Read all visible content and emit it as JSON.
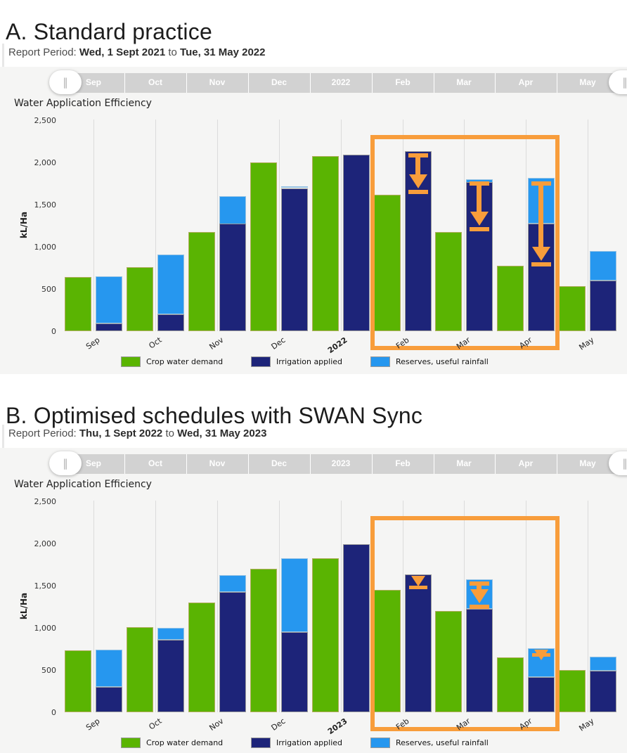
{
  "colors": {
    "green": "#5ab402",
    "green_border": "#b2ad60",
    "navy": "#1d2479",
    "navy_border": "#9b9b9b",
    "blue": "#2697ef",
    "blue_border": "#98c4e4",
    "orange": "#f89d3b",
    "slider_track": "#d2d2d2",
    "panel_bg": "#f5f5f4",
    "gridline": "#dbdbdb"
  },
  "slider": {
    "handle_glyph": "‖"
  },
  "sections": [
    {
      "heading": "A. Standard practice",
      "report_period": {
        "label": "Report Period:",
        "start": "Wed, 1 Sept 2021",
        "to": "to",
        "end": "Tue, 31 May 2022"
      }
    },
    {
      "heading": "B. Optimised schedules with SWAN Sync",
      "report_period": {
        "label": "Report Period:",
        "start": "Thu, 1 Sept 2022",
        "to": "to",
        "end": "Wed, 31 May 2023"
      }
    }
  ],
  "chart_data": [
    {
      "type": "bar",
      "title": "Water Application Efficiency",
      "ylabel": "kL/Ha",
      "ylim": [
        0,
        2500
      ],
      "yticks": [
        0,
        500,
        1000,
        1500,
        2000,
        2500
      ],
      "grid": "vertical-only",
      "legend_position": "bottom",
      "slider_labels": [
        "Sep",
        "Oct",
        "Nov",
        "Dec",
        "2022",
        "Feb",
        "Mar",
        "Apr",
        "May"
      ],
      "categories": [
        "Sep",
        "Oct",
        "Nov",
        "Dec",
        "2022",
        "Feb",
        "Mar",
        "Apr",
        "May"
      ],
      "series": [
        {
          "name": "Crop water demand",
          "color": "#5ab402",
          "values": [
            640,
            760,
            1170,
            2000,
            2070,
            1610,
            1170,
            770,
            530
          ]
        },
        {
          "name": "Irrigation applied",
          "color": "#1d2479",
          "values": [
            90,
            200,
            1270,
            1690,
            2090,
            2130,
            1760,
            1270,
            600
          ]
        },
        {
          "name": "Reserves, useful rainfall",
          "color": "#2697ef",
          "stacked_on": "Irrigation applied",
          "values": [
            560,
            710,
            330,
            20,
            0,
            0,
            40,
            540,
            350
          ]
        }
      ],
      "highlight": {
        "months": [
          "Feb",
          "Mar",
          "Apr"
        ],
        "color": "#f89d3b",
        "top_value": 2320
      },
      "arrows": [
        {
          "month": "Feb",
          "from": 2130,
          "to": 1640,
          "style": "full"
        },
        {
          "month": "Mar",
          "from": 1800,
          "to": 1200,
          "style": "full"
        },
        {
          "month": "Apr",
          "from": 1800,
          "to": 780,
          "style": "full"
        }
      ]
    },
    {
      "type": "bar",
      "title": "Water Application Efficiency",
      "ylabel": "kL/Ha",
      "ylim": [
        0,
        2500
      ],
      "yticks": [
        0,
        500,
        1000,
        1500,
        2000,
        2500
      ],
      "grid": "vertical-only",
      "legend_position": "bottom",
      "slider_labels": [
        "Sep",
        "Oct",
        "Nov",
        "Dec",
        "2023",
        "Feb",
        "Mar",
        "Apr",
        "May"
      ],
      "categories": [
        "Sep",
        "Oct",
        "Nov",
        "Dec",
        "2023",
        "Feb",
        "Mar",
        "Apr",
        "May"
      ],
      "series": [
        {
          "name": "Crop water demand",
          "color": "#5ab402",
          "values": [
            730,
            1010,
            1300,
            1700,
            1820,
            1450,
            1200,
            650,
            500
          ]
        },
        {
          "name": "Irrigation applied",
          "color": "#1d2479",
          "values": [
            300,
            860,
            1420,
            950,
            1990,
            1630,
            1220,
            420,
            490
          ]
        },
        {
          "name": "Reserves, useful rainfall",
          "color": "#2697ef",
          "stacked_on": "Irrigation applied",
          "values": [
            440,
            140,
            200,
            870,
            0,
            0,
            350,
            340,
            170
          ]
        }
      ],
      "highlight": {
        "months": [
          "Feb",
          "Mar",
          "Apr"
        ],
        "color": "#f89d3b",
        "top_value": 2320
      },
      "arrows": [
        {
          "month": "Feb",
          "from": 1630,
          "to": 1470,
          "style": "compact"
        },
        {
          "month": "Mar",
          "from": 1570,
          "to": 1240,
          "style": "full"
        },
        {
          "month": "Apr",
          "from": 760,
          "to": 670,
          "style": "compact"
        }
      ]
    }
  ]
}
